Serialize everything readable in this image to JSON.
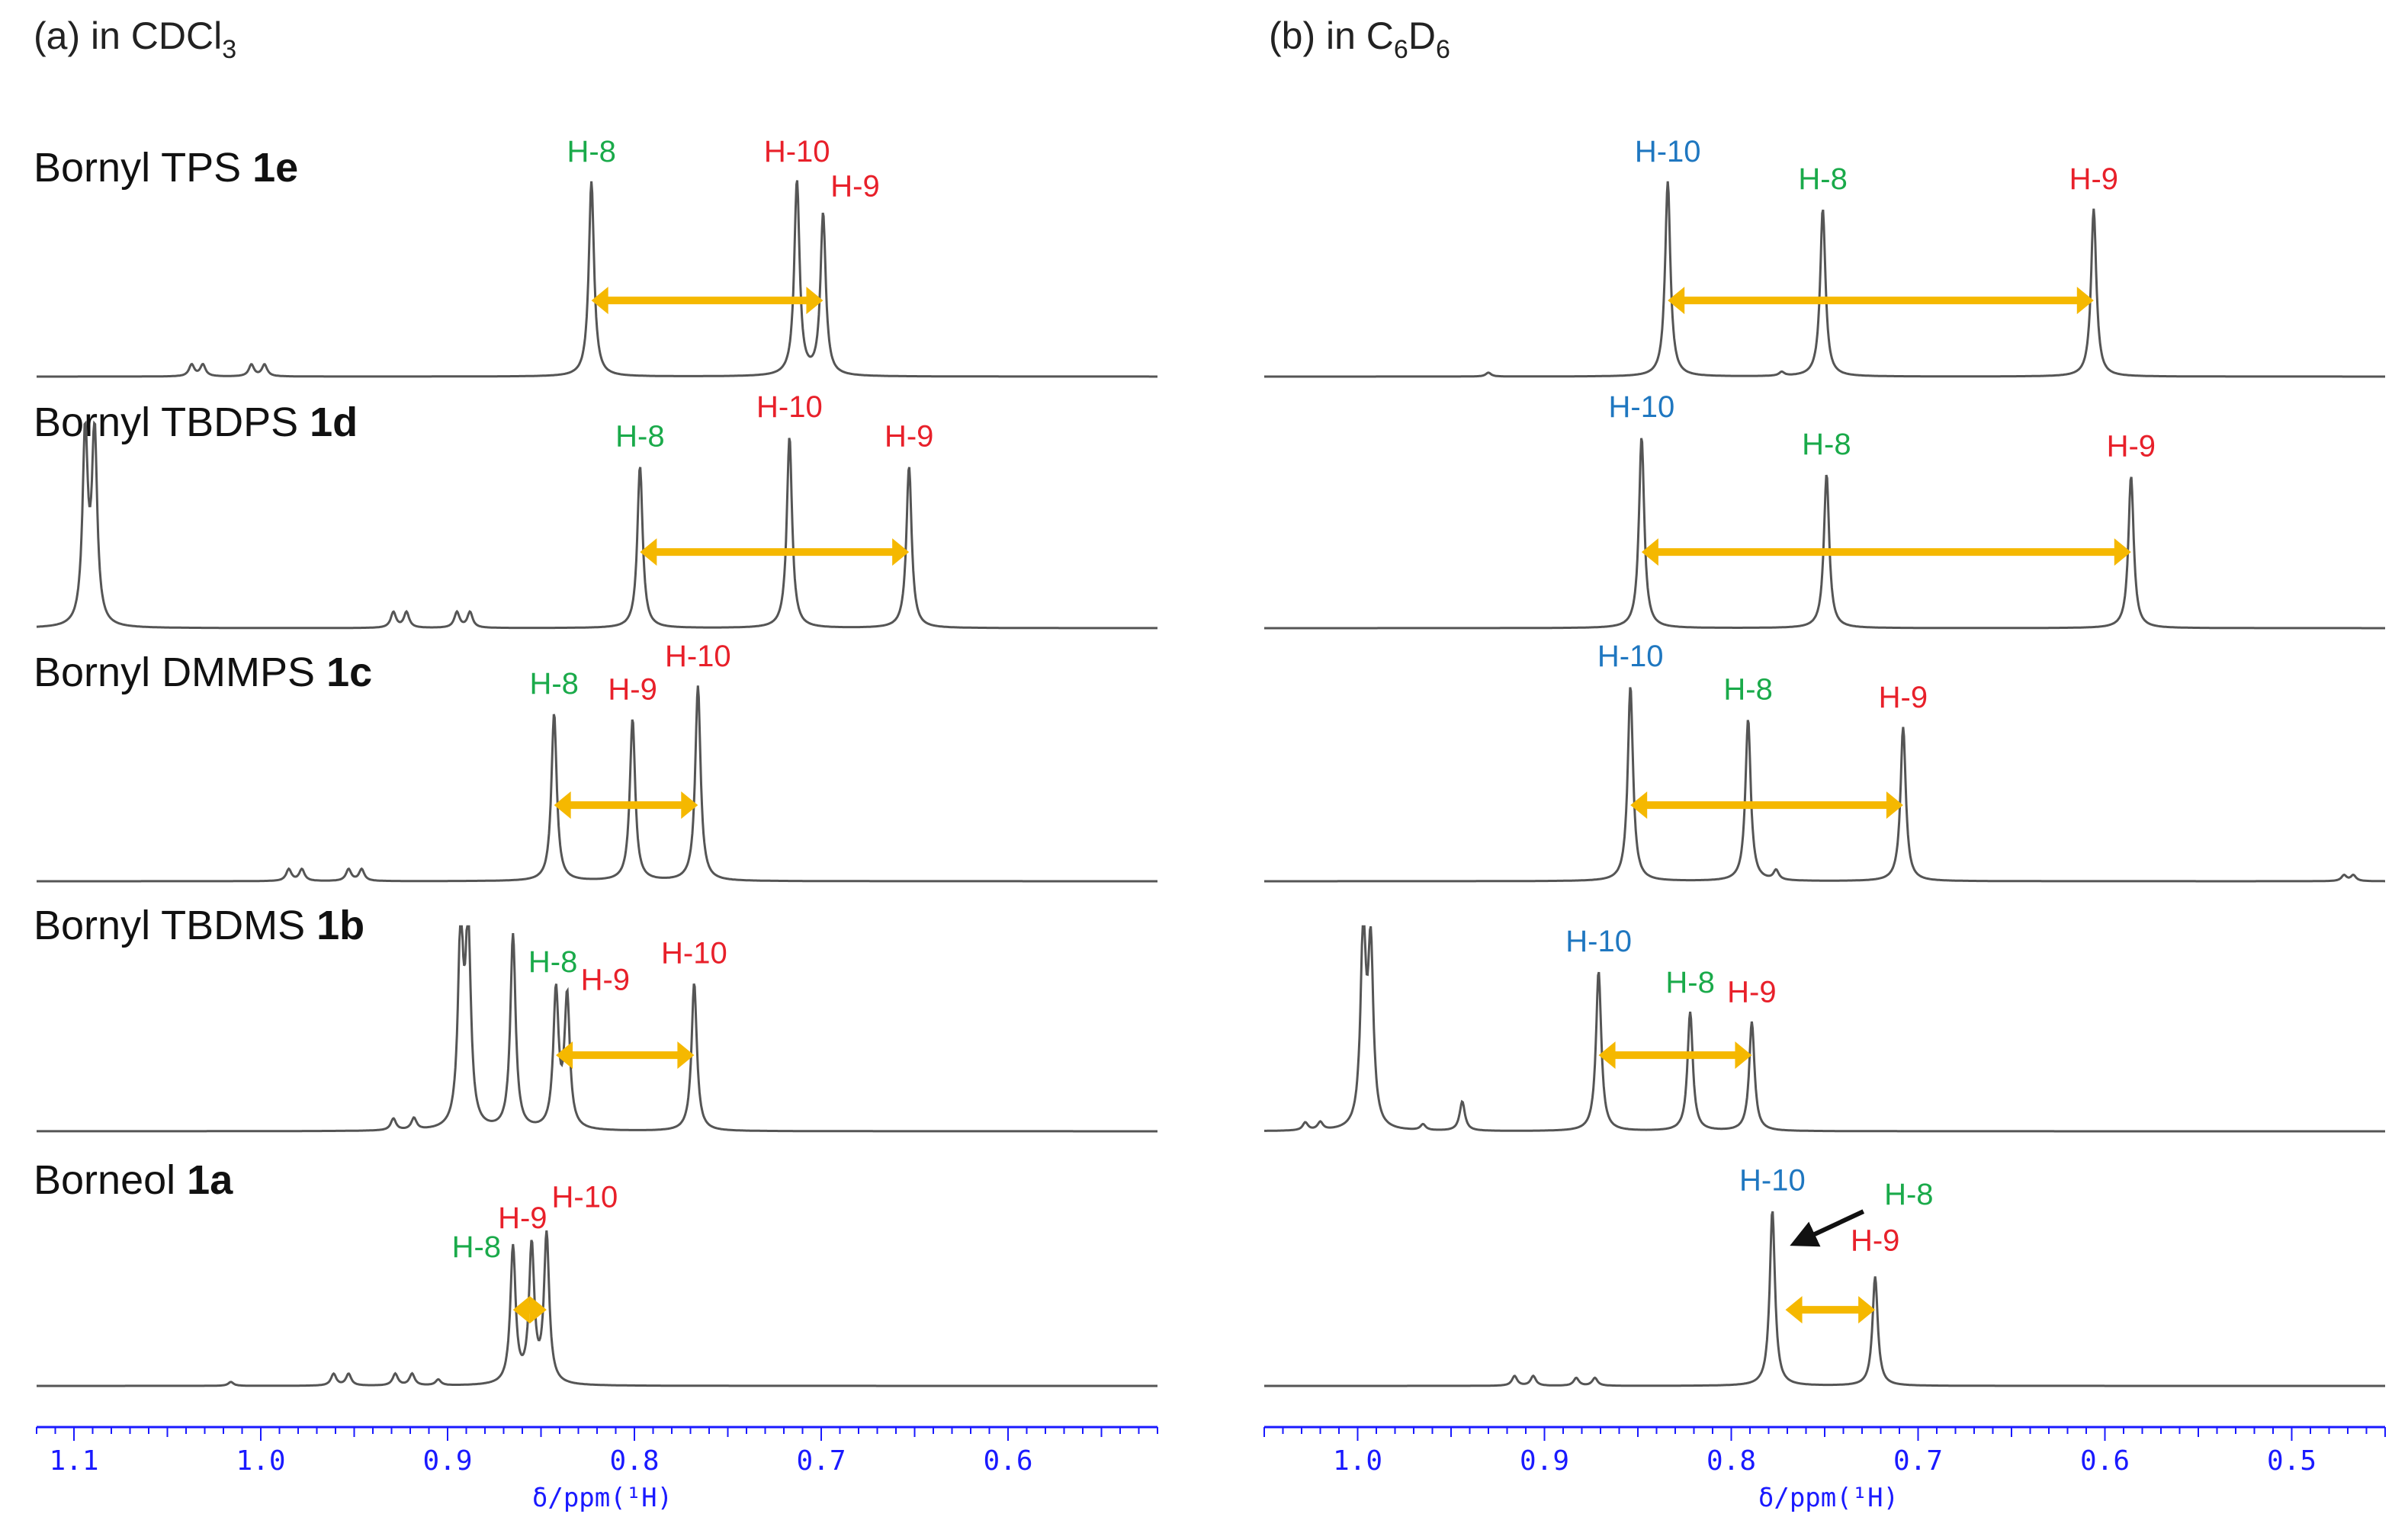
{
  "figure": {
    "colors": {
      "spectrum": "#555555",
      "arrow": "#f5b800",
      "axis": "#1a1aff",
      "label_green": "#1aaa4a",
      "label_red": "#e8202a",
      "label_blue": "#1f77c0"
    }
  },
  "chart_data": [
    {
      "type": "line",
      "panel": "(a)",
      "title_prefix": "(a) in CDCl",
      "title_sub": "3",
      "xlabel": "δ/ppm(¹H)",
      "xlim": [
        1.12,
        0.52
      ],
      "xticks": [
        "1.1",
        "1.0",
        "0.9",
        "0.8",
        "0.7",
        "0.6"
      ],
      "xtick_values": [
        1.1,
        1.0,
        0.9,
        0.8,
        0.7,
        0.6
      ],
      "spectra": [
        {
          "compound": "Bornyl TPS",
          "compound_id": "1e",
          "peaks": [
            {
              "label": "H-8",
              "ppm": 0.823,
              "color": "green",
              "height": 1.0
            },
            {
              "label": "H-10",
              "ppm": 0.713,
              "color": "red",
              "height": 1.0
            },
            {
              "label": "H-9",
              "ppm": 0.699,
              "color": "red",
              "height": 0.83
            }
          ],
          "minor_peaks": [
            {
              "ppm": 1.037,
              "height": 0.06
            },
            {
              "ppm": 1.031,
              "height": 0.06
            },
            {
              "ppm": 1.005,
              "height": 0.06
            },
            {
              "ppm": 0.998,
              "height": 0.06
            }
          ],
          "arrow": [
            0.823,
            0.699
          ]
        },
        {
          "compound": "Bornyl TBDPS",
          "compound_id": "1d",
          "peaks": [
            {
              "label": "H-8",
              "ppm": 0.797,
              "color": "green",
              "height": 0.83
            },
            {
              "label": "H-10",
              "ppm": 0.717,
              "color": "red",
              "height": 0.98
            },
            {
              "label": "H-9",
              "ppm": 0.653,
              "color": "red",
              "height": 0.83
            }
          ],
          "minor_peaks": [
            {
              "ppm": 1.094,
              "height": 0.98
            },
            {
              "ppm": 1.089,
              "height": 0.98
            },
            {
              "ppm": 0.929,
              "height": 0.08
            },
            {
              "ppm": 0.922,
              "height": 0.08
            },
            {
              "ppm": 0.895,
              "height": 0.08
            },
            {
              "ppm": 0.888,
              "height": 0.08
            }
          ],
          "arrow": [
            0.797,
            0.653
          ]
        },
        {
          "compound": "Bornyl DMMPS",
          "compound_id": "1c",
          "peaks": [
            {
              "label": "H-8",
              "ppm": 0.843,
              "color": "green",
              "height": 0.86
            },
            {
              "label": "H-9",
              "ppm": 0.801,
              "color": "red",
              "height": 0.83
            },
            {
              "label": "H-10",
              "ppm": 0.766,
              "color": "red",
              "height": 1.0
            }
          ],
          "minor_peaks": [
            {
              "ppm": 0.985,
              "height": 0.06
            },
            {
              "ppm": 0.978,
              "height": 0.06
            },
            {
              "ppm": 0.953,
              "height": 0.06
            },
            {
              "ppm": 0.946,
              "height": 0.06
            }
          ],
          "arrow": [
            0.843,
            0.766
          ]
        },
        {
          "compound": "Bornyl TBDMS",
          "compound_id": "1b",
          "peaks": [
            {
              "label": "H-8",
              "ppm": 0.842,
              "color": "green",
              "height": 0.7
            },
            {
              "label": "H-9",
              "ppm": 0.836,
              "color": "red",
              "height": 0.67
            },
            {
              "label": "H-10",
              "ppm": 0.768,
              "color": "red",
              "height": 0.76
            }
          ],
          "minor_peaks": [
            {
              "ppm": 0.893,
              "height": 1.0
            },
            {
              "ppm": 0.889,
              "height": 1.0
            },
            {
              "ppm": 0.865,
              "height": 1.0
            },
            {
              "ppm": 0.929,
              "height": 0.06
            },
            {
              "ppm": 0.918,
              "height": 0.06
            }
          ],
          "arrow": [
            0.842,
            0.768
          ]
        },
        {
          "compound": "Borneol",
          "compound_id": "1a",
          "peaks": [
            {
              "label": "H-8",
              "ppm": 0.865,
              "color": "green",
              "height": 0.7
            },
            {
              "label": "H-9",
              "ppm": 0.855,
              "color": "red",
              "height": 0.7
            },
            {
              "label": "H-10",
              "ppm": 0.847,
              "color": "red",
              "height": 0.76
            }
          ],
          "minor_peaks": [
            {
              "ppm": 0.961,
              "height": 0.06
            },
            {
              "ppm": 0.953,
              "height": 0.06
            },
            {
              "ppm": 0.928,
              "height": 0.06
            },
            {
              "ppm": 0.919,
              "height": 0.06
            },
            {
              "ppm": 0.905,
              "height": 0.03
            },
            {
              "ppm": 1.016,
              "height": 0.02
            }
          ],
          "arrow": [
            0.865,
            0.847
          ]
        }
      ]
    },
    {
      "type": "line",
      "panel": "(b)",
      "title_prefix": "(b) in C",
      "title_sub1": "6",
      "title_mid": "D",
      "title_sub2": "6",
      "xlabel": "δ/ppm(¹H)",
      "xlim": [
        1.05,
        0.45
      ],
      "xticks": [
        "1.0",
        "0.9",
        "0.8",
        "0.7",
        "0.6",
        "0.5"
      ],
      "xtick_values": [
        1.0,
        0.9,
        0.8,
        0.7,
        0.6,
        0.5
      ],
      "spectra": [
        {
          "peaks": [
            {
              "label": "H-10",
              "ppm": 0.834,
              "color": "blue",
              "height": 1.0
            },
            {
              "label": "H-8",
              "ppm": 0.751,
              "color": "green",
              "height": 0.86
            },
            {
              "label": "H-9",
              "ppm": 0.606,
              "color": "red",
              "height": 0.86
            }
          ],
          "minor_peaks": [
            {
              "ppm": 0.93,
              "height": 0.02
            },
            {
              "ppm": 0.773,
              "height": 0.02
            }
          ],
          "arrow": [
            0.834,
            0.606
          ]
        },
        {
          "peaks": [
            {
              "label": "H-10",
              "ppm": 0.848,
              "color": "blue",
              "height": 0.98
            },
            {
              "label": "H-8",
              "ppm": 0.749,
              "color": "green",
              "height": 0.79
            },
            {
              "label": "H-9",
              "ppm": 0.586,
              "color": "red",
              "height": 0.78
            }
          ],
          "minor_peaks": [],
          "arrow": [
            0.848,
            0.586
          ]
        },
        {
          "peaks": [
            {
              "label": "H-10",
              "ppm": 0.854,
              "color": "blue",
              "height": 1.0
            },
            {
              "label": "H-8",
              "ppm": 0.791,
              "color": "green",
              "height": 0.83
            },
            {
              "label": "H-9",
              "ppm": 0.708,
              "color": "red",
              "height": 0.79
            }
          ],
          "minor_peaks": [
            {
              "ppm": 0.776,
              "height": 0.05
            },
            {
              "ppm": 0.467,
              "height": 0.03
            },
            {
              "ppm": 0.472,
              "height": 0.03
            }
          ],
          "arrow": [
            0.854,
            0.708
          ]
        },
        {
          "peaks": [
            {
              "label": "H-10",
              "ppm": 0.871,
              "color": "blue",
              "height": 0.82
            },
            {
              "label": "H-8",
              "ppm": 0.822,
              "color": "green",
              "height": 0.61
            },
            {
              "label": "H-9",
              "ppm": 0.789,
              "color": "red",
              "height": 0.56
            }
          ],
          "minor_peaks": [
            {
              "ppm": 0.997,
              "height": 1.0
            },
            {
              "ppm": 0.993,
              "height": 0.9
            },
            {
              "ppm": 0.944,
              "height": 0.15
            },
            {
              "ppm": 0.965,
              "height": 0.03
            },
            {
              "ppm": 1.028,
              "height": 0.04
            },
            {
              "ppm": 1.02,
              "height": 0.04
            }
          ],
          "arrow": [
            0.871,
            0.789
          ]
        },
        {
          "peaks": [
            {
              "label": "H-10",
              "ppm": 0.778,
              "color": "blue",
              "height": 0.9
            },
            {
              "label": "H-8",
              "ppm": 0.775,
              "color": "green",
              "height": 0.0
            },
            {
              "label": "H-9",
              "ppm": 0.723,
              "color": "red",
              "height": 0.56
            }
          ],
          "minor_peaks": [
            {
              "ppm": 0.916,
              "height": 0.05
            },
            {
              "ppm": 0.906,
              "height": 0.05
            },
            {
              "ppm": 0.883,
              "height": 0.04
            },
            {
              "ppm": 0.873,
              "height": 0.04
            }
          ],
          "arrow": [
            0.771,
            0.723
          ],
          "pointer_arrow": true
        }
      ]
    }
  ]
}
